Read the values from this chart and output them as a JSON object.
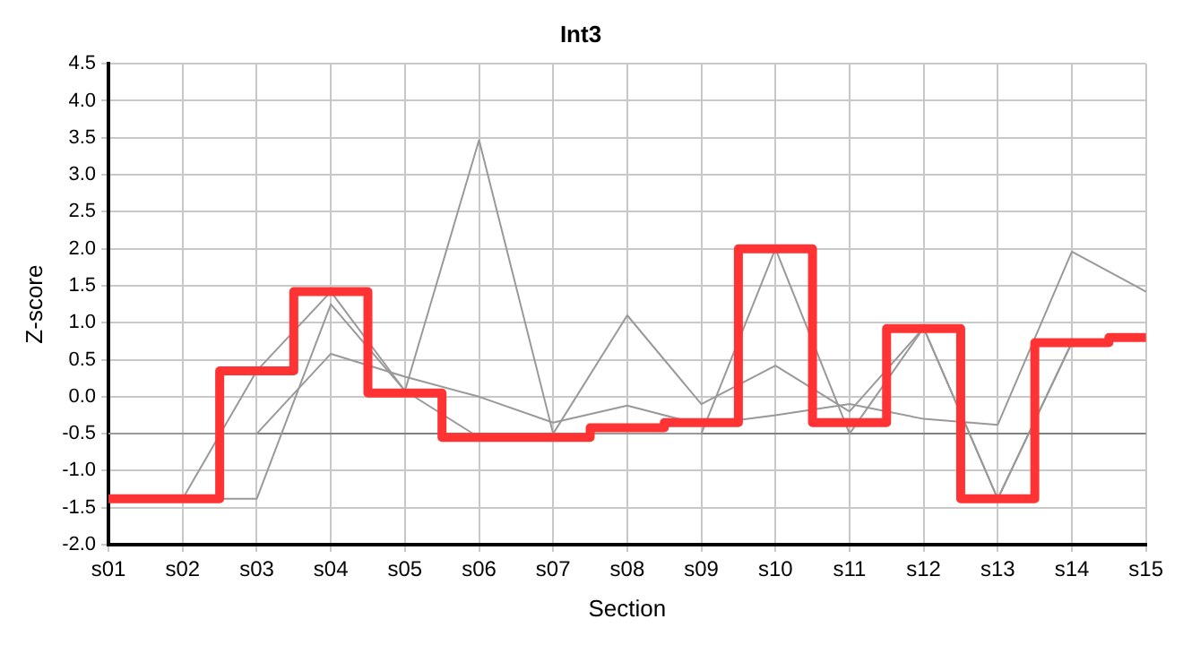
{
  "chart_data": {
    "type": "line",
    "title": "Int3",
    "xlabel": "Section",
    "ylabel": "Z-score",
    "categories": [
      "s01",
      "s02",
      "s03",
      "s04",
      "s05",
      "s06",
      "s07",
      "s08",
      "s09",
      "s10",
      "s11",
      "s12",
      "s13",
      "s14",
      "s15"
    ],
    "series": [
      {
        "color": "#999999",
        "values": [
          null,
          -1.38,
          0.35,
          1.42,
          0.08,
          -0.55,
          -0.5,
          -0.5,
          -0.5,
          2.0,
          -0.5,
          0.93,
          -1.38,
          0.73,
          0.8
        ]
      },
      {
        "color": "#999999",
        "values": [
          null,
          -1.38,
          -1.38,
          1.25,
          0.08,
          3.47,
          -0.5,
          1.1,
          -0.1,
          0.42,
          -0.2,
          0.93,
          -1.38,
          0.73,
          0.8
        ]
      },
      {
        "color": "#999999",
        "values": [
          -0.5,
          -0.5,
          -0.5,
          0.58,
          0.27,
          0.0,
          -0.35,
          -0.12,
          -0.38,
          -0.25,
          -0.1,
          -0.3,
          -0.38,
          1.96,
          1.42
        ]
      },
      {
        "type": "step",
        "color": "#ff3333",
        "values": [
          -1.38,
          -1.38,
          0.35,
          1.42,
          0.05,
          -0.55,
          -0.55,
          -0.42,
          -0.35,
          2.0,
          -0.35,
          0.92,
          -1.38,
          0.73,
          0.8
        ]
      }
    ],
    "ylim": [
      -2.0,
      4.5
    ],
    "yticks": [
      {
        "value": -2,
        "label": "-2.0"
      },
      {
        "value": -1.5,
        "label": "-1.5"
      },
      {
        "value": -1,
        "label": "-1.0"
      },
      {
        "value": -0.5,
        "label": "-0.5"
      },
      {
        "value": 0,
        "label": "0.0"
      },
      {
        "value": 0.5,
        "label": "0.5"
      },
      {
        "value": 1,
        "label": "1.0"
      },
      {
        "value": 1.5,
        "label": "1.5"
      },
      {
        "value": 2,
        "label": "2.0"
      },
      {
        "value": 2.5,
        "label": "2.5"
      },
      {
        "value": 3,
        "label": "3.0"
      },
      {
        "value": 3.5,
        "label": "3.5"
      },
      {
        "value": 4,
        "label": "4.0"
      },
      {
        "value": 4.5,
        "label": "4.5"
      }
    ],
    "ref_lines": [
      {
        "axis": "y",
        "value": -0.5,
        "color": "#808080"
      }
    ],
    "grid": true,
    "legend": false,
    "marker": "none"
  }
}
